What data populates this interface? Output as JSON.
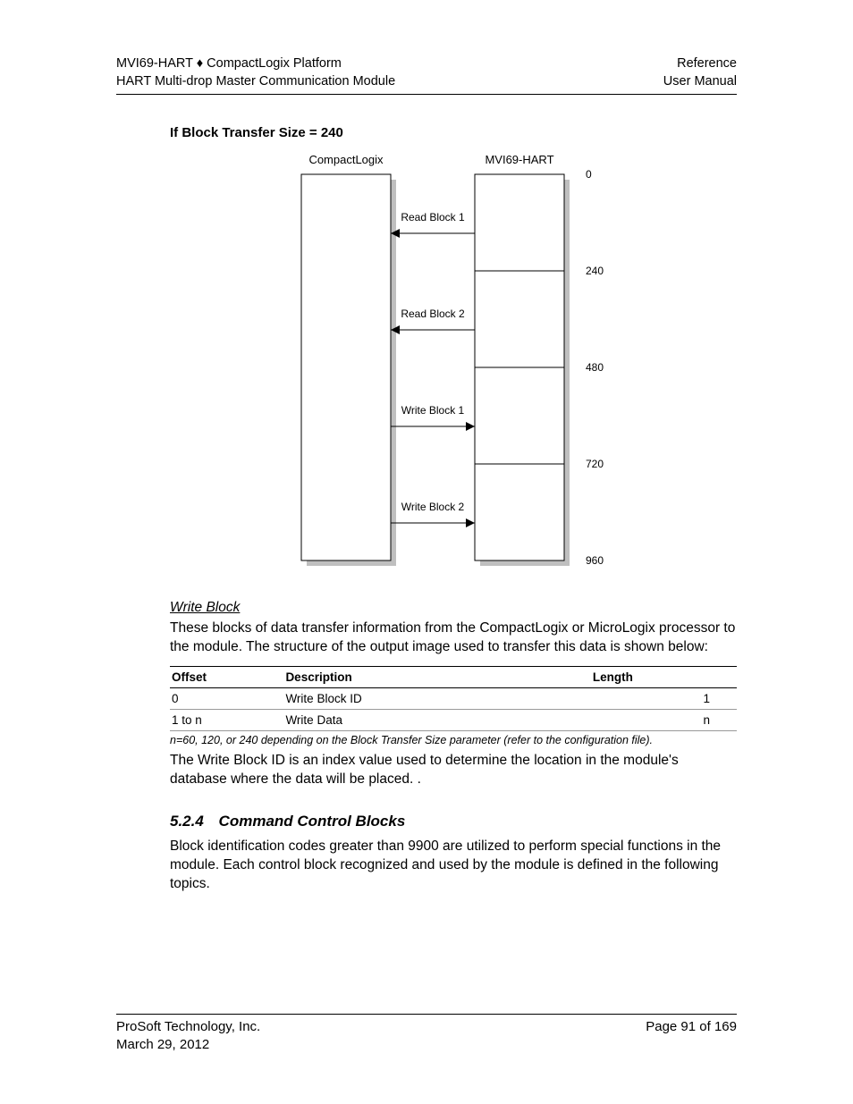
{
  "header": {
    "left_line1_a": "MVI69-HART",
    "left_line1_sep": "♦",
    "left_line1_b": "CompactLogix Platform",
    "left_line2": "HART Multi-drop Master Communication Module",
    "right_line1": "Reference",
    "right_line2": "User Manual"
  },
  "heading1": "If Block Transfer Size = 240",
  "diagram": {
    "left_label": "CompactLogix",
    "right_label": "MVI69-HART",
    "y_marks": [
      "0",
      "240",
      "480",
      "720",
      "960"
    ],
    "rows": [
      {
        "label": "Read Block 1",
        "dir": "left"
      },
      {
        "label": "Read Block 2",
        "dir": "left"
      },
      {
        "label": "Write Block 1",
        "dir": "right"
      },
      {
        "label": "Write Block 2",
        "dir": "right"
      }
    ],
    "colors": {
      "outline": "#000000",
      "shadow": "#bfbfbf",
      "text": "#000000",
      "bg": "#ffffff"
    }
  },
  "write_block": {
    "title": "Write Block",
    "para": "These blocks of data transfer information from the CompactLogix or MicroLogix processor to the module. The structure of the output image used to transfer this data is shown below:"
  },
  "table": {
    "headers": {
      "offset": "Offset",
      "desc": "Description",
      "len": "Length"
    },
    "rows": [
      {
        "offset": "0",
        "desc": "Write Block ID",
        "len": "1"
      },
      {
        "offset": "1 to n",
        "desc": "Write Data",
        "len": "n"
      }
    ]
  },
  "footnote": "n=60, 120, or 240 depending on the Block Transfer Size parameter (refer to the configuration file).",
  "para2": "The Write Block ID is an index value used to determine the location in the module's database where the data will be placed. .",
  "section": {
    "num": "5.2.4",
    "label": "Command Control Blocks"
  },
  "para3": "Block identification codes greater than 9900 are utilized to perform special functions in the module. Each control block recognized and used by the module is defined in the following topics.",
  "footer": {
    "left_line1": "ProSoft Technology, Inc.",
    "left_line2": "March 29, 2012",
    "right_line1": "Page 91 of 169"
  }
}
